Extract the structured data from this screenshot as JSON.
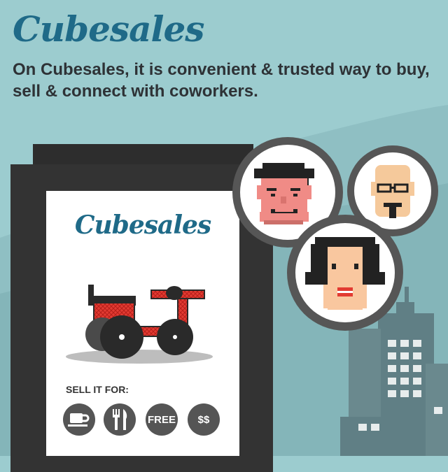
{
  "header": {
    "brand": "Cubesales",
    "tagline": "On Cubesales, it is convenient & trusted way to buy, sell & connect with coworkers."
  },
  "phone": {
    "logo": "Cubesales",
    "item_icon": "tricycle-icon",
    "sell_label": "SELL IT FOR:",
    "options": [
      {
        "icon": "coffee-cup-icon",
        "label": ""
      },
      {
        "icon": "fork-knife-icon",
        "label": ""
      },
      {
        "icon": "",
        "label": "FREE"
      },
      {
        "icon": "",
        "label": "$$"
      }
    ]
  },
  "avatars": [
    {
      "icon": "man-avatar-icon"
    },
    {
      "icon": "bald-man-glasses-avatar-icon"
    },
    {
      "icon": "woman-avatar-icon"
    }
  ],
  "colors": {
    "sky": "#9ccccf",
    "brand": "#1f6a88",
    "phone_body": "#333333",
    "accent_red": "#e23b32",
    "building": "#607f85"
  }
}
